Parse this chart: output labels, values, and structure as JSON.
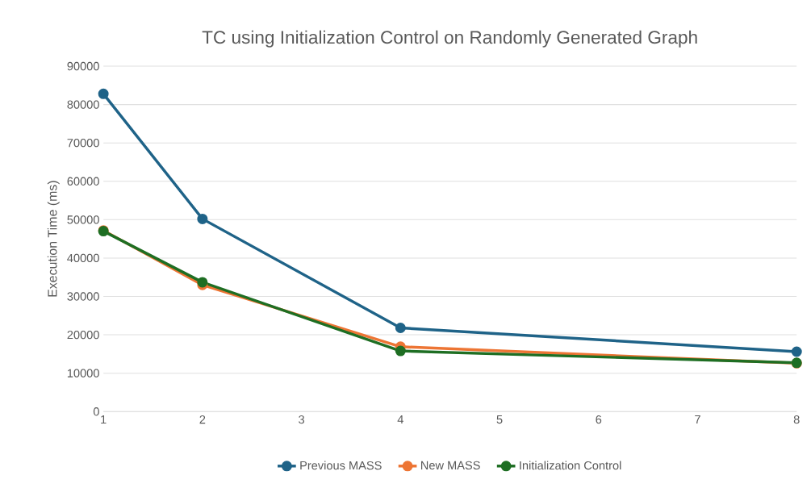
{
  "chart_data": {
    "type": "line",
    "title": "TC using Initialization Control on Randomly Generated Graph",
    "ylabel": "Execution Time (ms)",
    "x": [
      1,
      2,
      4,
      8
    ],
    "xlim": [
      1,
      8
    ],
    "xticks": [
      1,
      2,
      3,
      4,
      5,
      6,
      7,
      8
    ],
    "ylim": [
      0,
      90000
    ],
    "yticks": [
      0,
      10000,
      20000,
      30000,
      40000,
      50000,
      60000,
      70000,
      80000,
      90000
    ],
    "grid": "y",
    "legend": "bottom",
    "marker": "circle",
    "line_style": "solid",
    "series": [
      {
        "name": "Previous MASS",
        "color": "#1f6388",
        "values": [
          82800,
          50200,
          21800,
          15600
        ]
      },
      {
        "name": "New MASS",
        "color": "#ed7534",
        "values": [
          47200,
          33000,
          16900,
          12600
        ]
      },
      {
        "name": "Initialization Control",
        "color": "#1e6e23",
        "values": [
          47000,
          33700,
          15800,
          12700
        ]
      }
    ]
  }
}
